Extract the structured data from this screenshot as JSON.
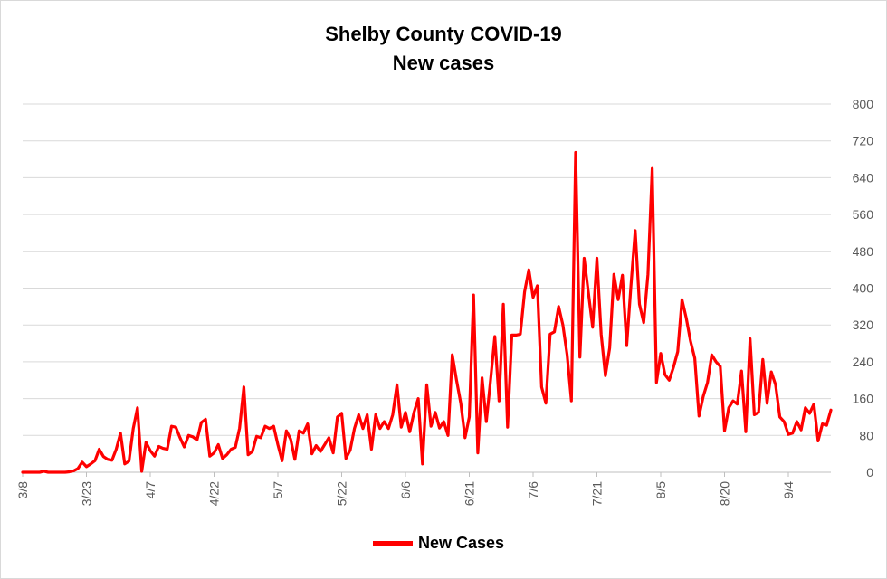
{
  "chart_data": {
    "type": "line",
    "title": [
      "Shelby County COVID-19",
      "New cases"
    ],
    "xlabel": "",
    "ylabel": "",
    "ylim": [
      0,
      800
    ],
    "yticks": [
      0,
      80,
      160,
      240,
      320,
      400,
      480,
      560,
      640,
      720,
      800
    ],
    "y_axis_side": "right",
    "grid": true,
    "legend": "bottom",
    "x_tick_labels": [
      "3/8",
      "3/23",
      "4/7",
      "4/22",
      "5/7",
      "5/22",
      "6/6",
      "6/21",
      "7/6",
      "7/21",
      "8/5",
      "8/20",
      "9/4"
    ],
    "start_date": "3/8",
    "series": [
      {
        "name": "New Cases",
        "color": "#ff0000",
        "values": [
          0,
          0,
          0,
          0,
          0,
          2,
          0,
          0,
          0,
          0,
          0,
          1,
          3,
          8,
          22,
          12,
          18,
          25,
          50,
          34,
          28,
          26,
          50,
          85,
          18,
          24,
          95,
          140,
          2,
          65,
          47,
          35,
          56,
          52,
          50,
          100,
          98,
          75,
          55,
          80,
          77,
          70,
          108,
          115,
          35,
          42,
          60,
          30,
          38,
          50,
          54,
          96,
          185,
          38,
          45,
          78,
          75,
          100,
          95,
          100,
          60,
          25,
          90,
          72,
          28,
          90,
          85,
          105,
          40,
          58,
          45,
          60,
          75,
          42,
          120,
          128,
          30,
          48,
          95,
          125,
          95,
          125,
          50,
          125,
          95,
          110,
          95,
          125,
          190,
          98,
          130,
          88,
          130,
          160,
          18,
          190,
          100,
          130,
          96,
          110,
          80,
          255,
          200,
          150,
          75,
          120,
          385,
          42,
          205,
          110,
          200,
          295,
          155,
          365,
          98,
          298,
          298,
          300,
          392,
          440,
          380,
          405,
          185,
          150,
          300,
          305,
          360,
          320,
          255,
          155,
          695,
          250,
          465,
          390,
          315,
          465,
          300,
          210,
          270,
          430,
          375,
          428,
          275,
          405,
          525,
          365,
          325,
          430,
          660,
          195,
          258,
          212,
          200,
          228,
          262,
          375,
          335,
          285,
          248,
          122,
          165,
          195,
          255,
          240,
          230,
          90,
          140,
          155,
          148,
          220,
          88,
          290,
          125,
          130,
          245,
          150,
          218,
          190,
          120,
          110,
          82,
          85,
          110,
          92,
          140,
          128,
          148,
          68,
          105,
          102,
          135
        ]
      }
    ]
  }
}
